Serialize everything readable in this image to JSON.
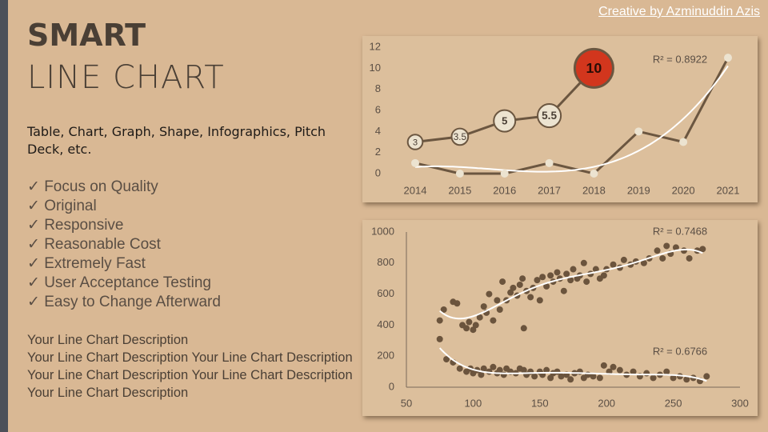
{
  "credit": "Creative by Azminuddin Azis",
  "header": {
    "title": "SMART",
    "subtitle": "LINE CHART"
  },
  "intro": "Table, Chart, Graph, Shape, Infographics, Pitch Deck, etc.",
  "features": [
    "✓ Focus on Quality",
    "✓ Original",
    "✓ Responsive",
    "✓ Reasonable Cost",
    "✓ Extremely Fast",
    "✓ User Acceptance Testing",
    "✓ Easy to Change Afterward"
  ],
  "description_title": "Your Line Chart Description",
  "description": "Your Line Chart Description Your Line Chart Description Your Line Chart Description Your Line Chart Description Your Line Chart Description",
  "chart_data": [
    {
      "type": "line",
      "categories": [
        "2014",
        "2015",
        "2016",
        "2017",
        "2018",
        "2019",
        "2020",
        "2021"
      ],
      "ylim": [
        0,
        12
      ],
      "yticks": [
        0,
        2,
        4,
        6,
        8,
        10,
        12
      ],
      "grid": false,
      "series": [
        {
          "color": "#6b5640",
          "marker_fill": "#ece3d0",
          "highlight_color": "#d2361d",
          "values": [
            3,
            3.5,
            5,
            5.5,
            10,
            null,
            null,
            null
          ]
        },
        {
          "color": "#6b5640",
          "marker_fill": "#ece3d0",
          "trendline_color": "#ffffff",
          "values": [
            1,
            0,
            0,
            1,
            0,
            4,
            3,
            11
          ]
        }
      ],
      "annotations": [
        "R² = 0.8922"
      ]
    },
    {
      "type": "scatter",
      "xlim": [
        50,
        300
      ],
      "xticks": [
        50,
        100,
        150,
        200,
        250,
        300
      ],
      "ylim": [
        0,
        1000
      ],
      "yticks": [
        0,
        200,
        400,
        600,
        800,
        1000
      ],
      "grid": false,
      "series": [
        {
          "color": "#6b543d",
          "trendline_color": "#ffffff",
          "x": [
            75,
            78,
            85,
            88,
            92,
            95,
            97,
            100,
            102,
            105,
            108,
            110,
            112,
            115,
            118,
            120,
            122,
            125,
            128,
            130,
            133,
            135,
            137,
            138,
            140,
            143,
            145,
            148,
            150,
            152,
            155,
            158,
            160,
            163,
            165,
            168,
            170,
            173,
            175,
            178,
            180,
            183,
            185,
            188,
            192,
            195,
            198,
            200,
            205,
            210,
            213,
            218,
            222,
            228,
            232,
            238,
            242,
            245,
            248,
            252,
            258,
            262,
            268,
            272
          ],
          "values": [
            430,
            500,
            550,
            540,
            400,
            380,
            420,
            370,
            400,
            450,
            520,
            480,
            600,
            430,
            560,
            500,
            680,
            560,
            610,
            640,
            590,
            660,
            700,
            380,
            620,
            580,
            640,
            690,
            560,
            710,
            650,
            720,
            680,
            740,
            700,
            620,
            730,
            690,
            760,
            700,
            720,
            800,
            680,
            730,
            760,
            700,
            720,
            760,
            790,
            770,
            820,
            790,
            810,
            800,
            830,
            880,
            830,
            910,
            860,
            900,
            880,
            830,
            880,
            890
          ]
        },
        {
          "color": "#6b543d",
          "trendline_color": "#ffffff",
          "x": [
            75,
            80,
            85,
            90,
            95,
            98,
            100,
            103,
            106,
            108,
            112,
            115,
            118,
            120,
            123,
            125,
            128,
            132,
            135,
            138,
            140,
            143,
            146,
            150,
            152,
            155,
            158,
            160,
            163,
            166,
            170,
            173,
            176,
            180,
            183,
            186,
            190,
            195,
            198,
            202,
            205,
            210,
            215,
            220,
            225,
            230,
            235,
            240,
            245,
            250,
            255,
            260,
            265,
            270,
            275
          ],
          "values": [
            310,
            180,
            160,
            120,
            100,
            120,
            90,
            110,
            80,
            120,
            100,
            130,
            90,
            110,
            80,
            120,
            100,
            90,
            120,
            110,
            80,
            100,
            70,
            100,
            80,
            110,
            60,
            90,
            100,
            70,
            80,
            50,
            90,
            100,
            60,
            80,
            70,
            60,
            140,
            100,
            130,
            110,
            80,
            100,
            70,
            90,
            60,
            80,
            100,
            60,
            70,
            50,
            60,
            40,
            70
          ]
        }
      ],
      "annotations": [
        "R² = 0.7468",
        "R² = 0.6766"
      ]
    }
  ]
}
